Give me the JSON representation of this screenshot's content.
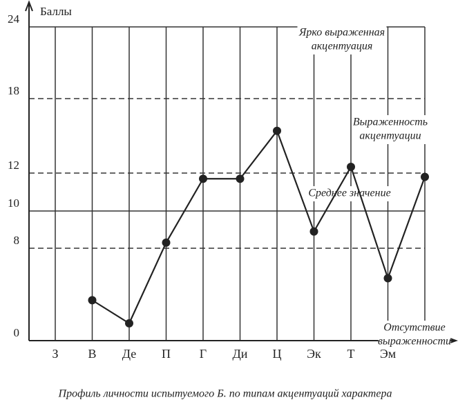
{
  "chart_data": {
    "type": "line",
    "y_label": "Баллы",
    "caption": "Профиль личности испытуемого Б. по типам акцентуаций характера",
    "categories": [
      "З",
      "В",
      "Де",
      "П",
      "Г",
      "Ди",
      "Ц",
      "Эк",
      "Т",
      "Эм",
      null
    ],
    "series": [
      {
        "color": "#222222",
        "values": [
          null,
          3.5,
          1.5,
          8.3,
          11.7,
          11.7,
          15.4,
          8.9,
          12.5,
          5.4,
          11.8
        ]
      }
    ],
    "ylim": [
      0,
      24
    ],
    "yticks": [
      0,
      8,
      10,
      12,
      18,
      24
    ],
    "grid_dashed": [
      false,
      true,
      false,
      true,
      true,
      false
    ],
    "annotations": [
      {
        "lines": [
          "Ярко выраженная",
          "акцентуация"
        ]
      },
      {
        "lines": [
          "Выраженность",
          "акцентуации"
        ]
      },
      {
        "lines": [
          "Среднее значение"
        ]
      },
      {
        "lines": [
          "Отсутствие",
          "выраженности"
        ]
      }
    ]
  }
}
